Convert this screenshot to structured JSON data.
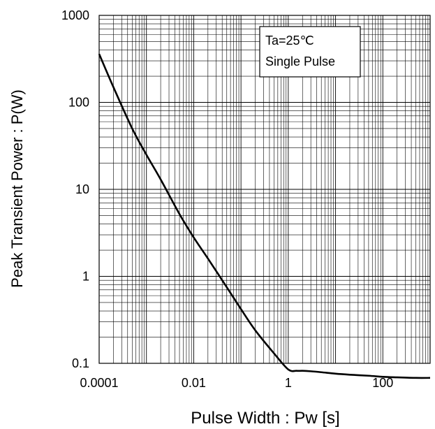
{
  "chart_data": {
    "type": "line",
    "title": "",
    "xlabel": "Pulse Width : Pw [s]",
    "ylabel": "Peak Transient Power : P(W)",
    "xscale": "log",
    "yscale": "log",
    "xlim": [
      0.0001,
      1000
    ],
    "ylim": [
      0.1,
      1000
    ],
    "grid": "on (major and minor)",
    "x_ticks": [
      {
        "value": 0.0001,
        "label": "0.0001"
      },
      {
        "value": 0.01,
        "label": "0.01"
      },
      {
        "value": 1,
        "label": "1"
      },
      {
        "value": 100,
        "label": "100"
      }
    ],
    "y_ticks": [
      {
        "value": 0.1,
        "label": "0.1"
      },
      {
        "value": 1,
        "label": "1"
      },
      {
        "value": 10,
        "label": "10"
      },
      {
        "value": 100,
        "label": "100"
      },
      {
        "value": 1000,
        "label": "1000"
      }
    ],
    "annotation": [
      "Ta=25℃",
      "Single Pulse"
    ],
    "annotation_placement": "top-right",
    "series": [
      {
        "color": "#000000",
        "x": [
          0.0001,
          0.0002,
          0.0005,
          0.001,
          0.002,
          0.005,
          0.01,
          0.02,
          0.05,
          0.1,
          0.2,
          0.5,
          1,
          1.5,
          2,
          3,
          5,
          10,
          20,
          50,
          100,
          200,
          500,
          1000
        ],
        "y": [
          360,
          150,
          50,
          25,
          13,
          5.2,
          2.8,
          1.6,
          0.75,
          0.42,
          0.24,
          0.13,
          0.085,
          0.082,
          0.082,
          0.081,
          0.079,
          0.076,
          0.074,
          0.072,
          0.07,
          0.069,
          0.068,
          0.068
        ]
      }
    ]
  }
}
